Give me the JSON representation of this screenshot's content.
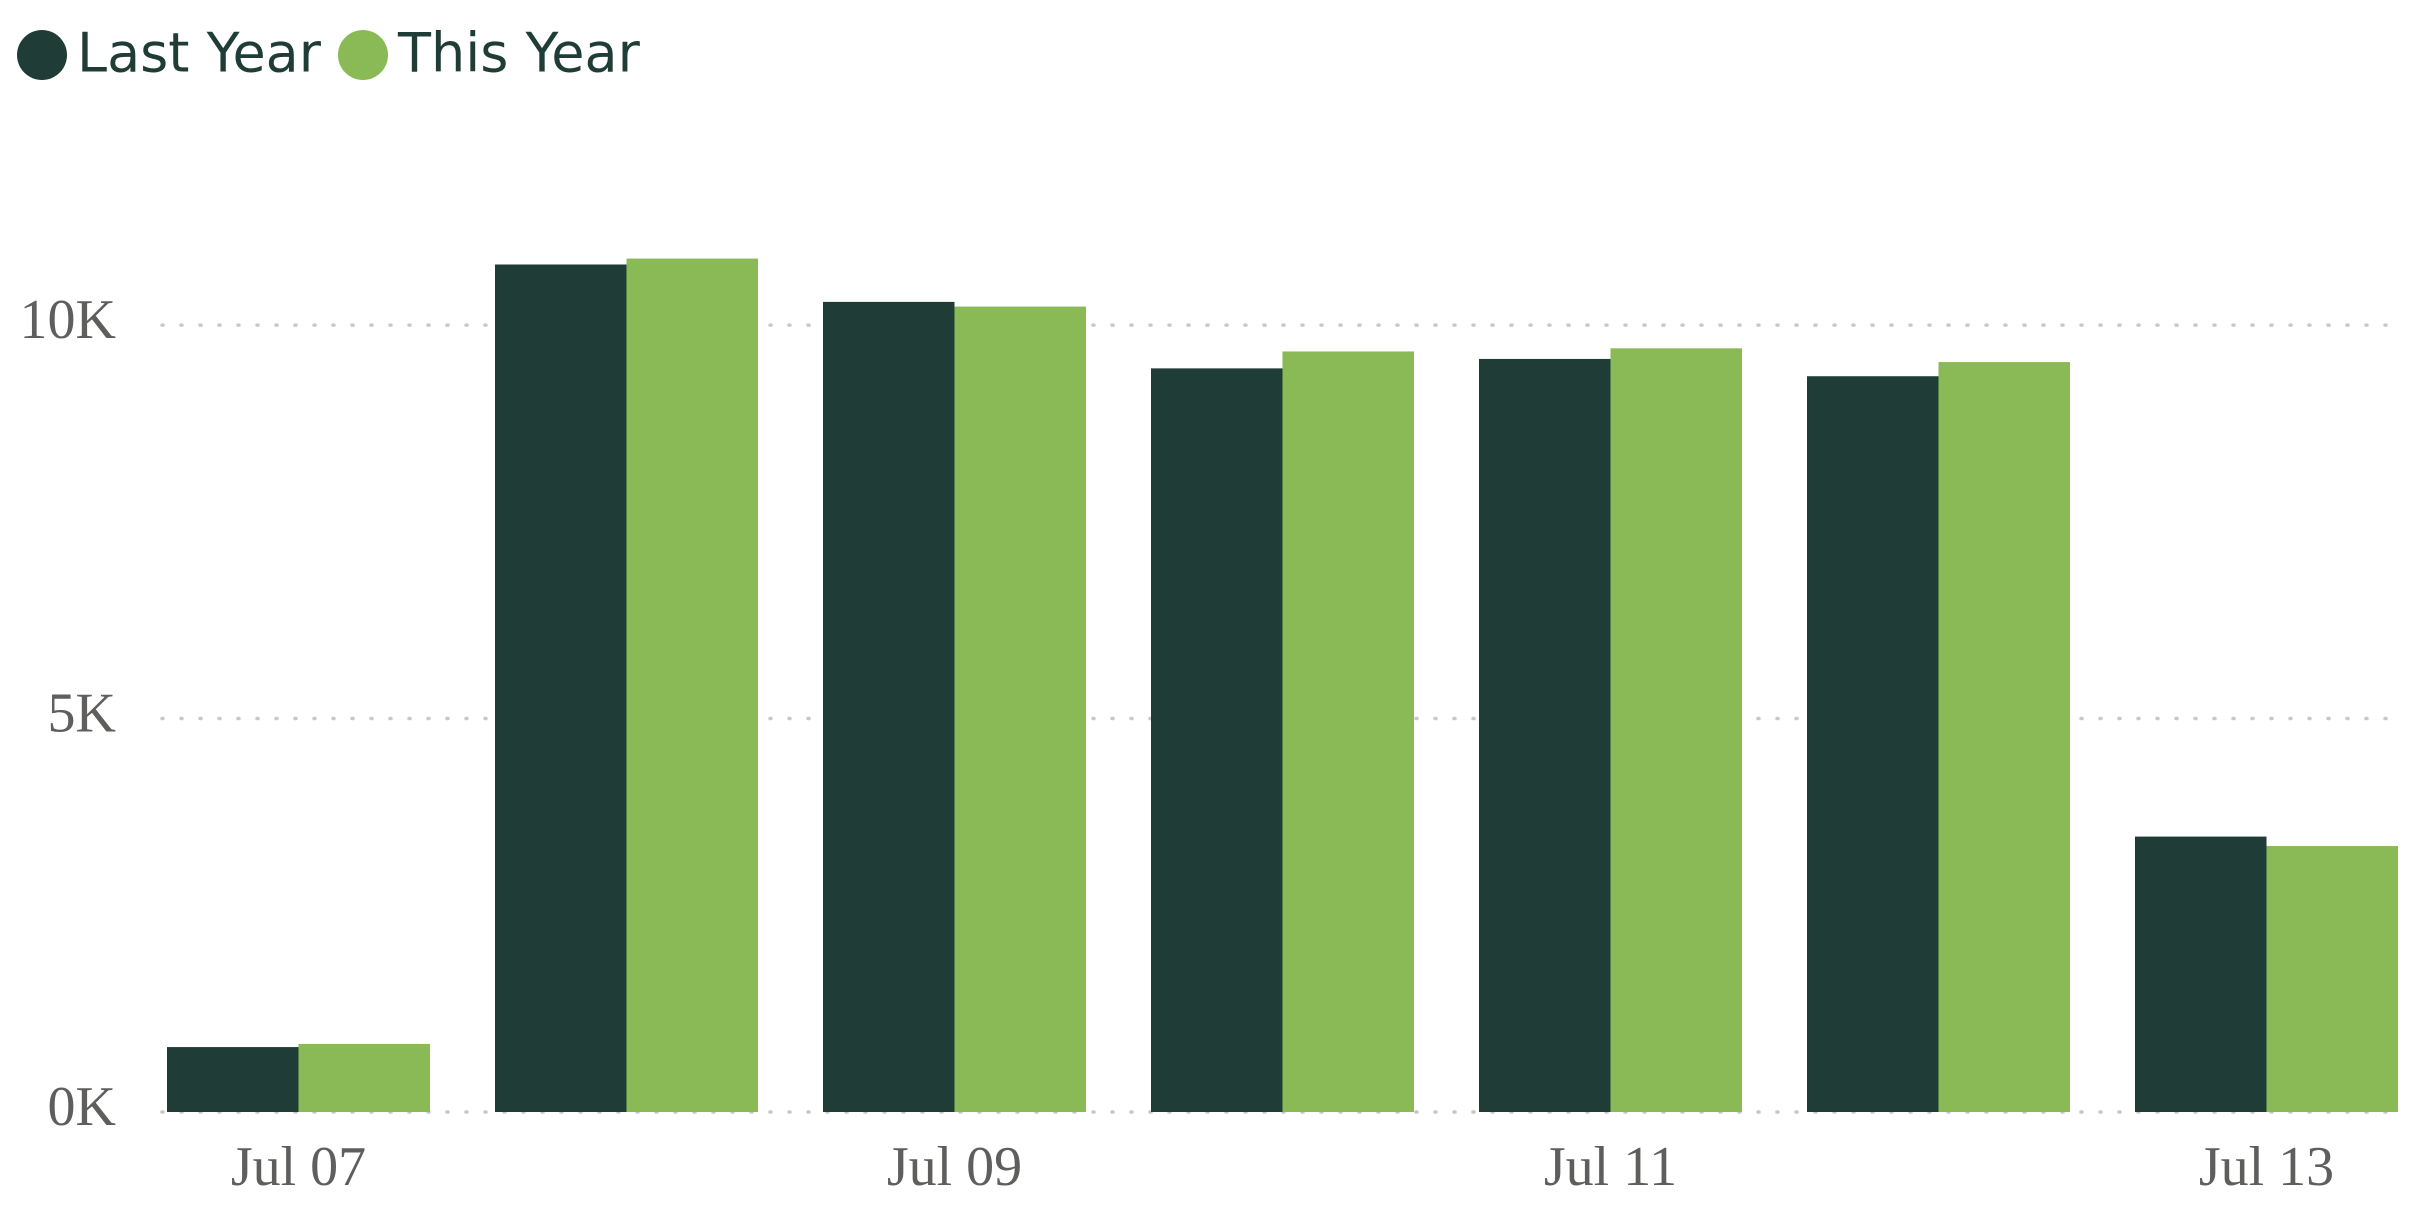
{
  "chart_data": {
    "type": "bar",
    "categories": [
      "Jul 07",
      null,
      "Jul 09",
      null,
      "Jul 11",
      null,
      "Jul 13"
    ],
    "series": [
      {
        "name": "Last Year",
        "color": "#1f3d36",
        "values": [
          825,
          10770,
          10295,
          9450,
          9570,
          9350,
          3500
        ]
      },
      {
        "name": "This Year",
        "color": "#8aba56",
        "values": [
          865,
          10845,
          10235,
          9665,
          9705,
          9530,
          3380
        ]
      }
    ],
    "ylim": [
      0,
      12000
    ],
    "yticks": [
      {
        "value": 0,
        "label": "0K"
      },
      {
        "value": 5000,
        "label": "5K"
      },
      {
        "value": 10000,
        "label": "10K"
      }
    ],
    "grid": true
  }
}
